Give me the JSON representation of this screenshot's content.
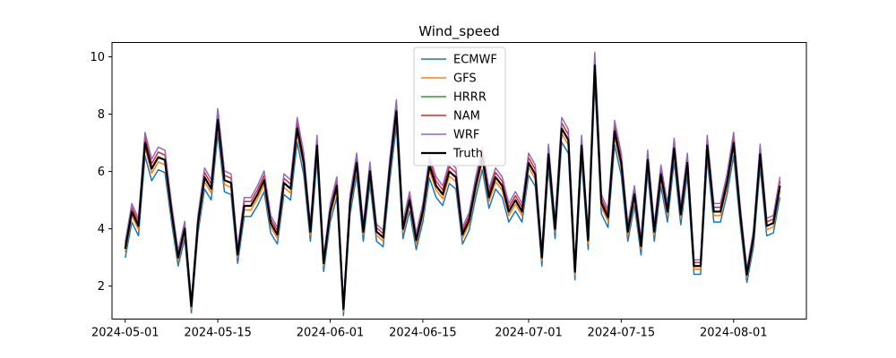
{
  "chart_data": {
    "type": "line",
    "title": "Wind_speed",
    "xlabel": "",
    "ylabel": "",
    "x_start": "2024-05-01",
    "x_end": "2024-08-06",
    "xlim": [
      "2024-04-29",
      "2024-08-12"
    ],
    "ylim": [
      0.85,
      10.5
    ],
    "yticks": [
      2,
      4,
      6,
      8,
      10
    ],
    "xticks": [
      "2024-05-01",
      "2024-05-15",
      "2024-06-01",
      "2024-06-15",
      "2024-07-01",
      "2024-07-15",
      "2024-08-01"
    ],
    "grid": false,
    "legend_position": "top-center",
    "truth": [
      3.3,
      4.6,
      4.1,
      7.0,
      6.1,
      6.5,
      6.4,
      4.6,
      3.0,
      4.0,
      1.3,
      4.2,
      5.8,
      5.4,
      7.8,
      5.7,
      5.6,
      3.1,
      4.8,
      4.8,
      5.2,
      5.7,
      4.2,
      3.8,
      5.6,
      5.4,
      7.5,
      6.3,
      3.9,
      6.9,
      2.8,
      4.6,
      5.5,
      1.2,
      4.9,
      6.3,
      3.9,
      6.0,
      3.9,
      3.7,
      6.1,
      8.1,
      4.0,
      5.0,
      3.6,
      4.6,
      6.2,
      5.5,
      5.2,
      6.0,
      5.8,
      3.8,
      4.3,
      5.5,
      6.5,
      5.1,
      5.8,
      5.5,
      4.6,
      5.0,
      4.6,
      6.3,
      5.9,
      3.0,
      6.6,
      4.0,
      7.5,
      7.1,
      2.5,
      6.9,
      3.6,
      9.7,
      4.9,
      4.4,
      7.4,
      6.3,
      3.9,
      5.2,
      3.4,
      6.4,
      3.9,
      5.9,
      4.6,
      6.8,
      4.5,
      6.3,
      2.7,
      2.7,
      6.9,
      4.6,
      4.6,
      5.6,
      7.0,
      4.5,
      2.4,
      3.7,
      6.6,
      4.1,
      4.2,
      5.5
    ],
    "colors": {
      "ECMWF": "#1f77b4",
      "GFS": "#ff7f0e",
      "HRRR": "#2ca02c",
      "NAM": "#d62728",
      "WRF": "#9467bd",
      "Truth": "#000000"
    },
    "series": [
      {
        "name": "ECMWF",
        "offset": -0.18,
        "scale": 0.96
      },
      {
        "name": "GFS",
        "offset": -0.07,
        "scale": 0.985
      },
      {
        "name": "HRRR",
        "offset": 0.0,
        "scale": 1.0
      },
      {
        "name": "NAM",
        "offset": 0.08,
        "scale": 1.015
      },
      {
        "name": "WRF",
        "offset": 0.12,
        "scale": 1.035
      },
      {
        "name": "Truth",
        "offset": 0.0,
        "scale": 1.0
      }
    ]
  }
}
